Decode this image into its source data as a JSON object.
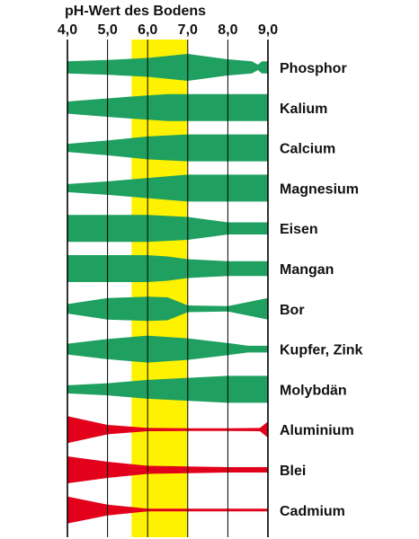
{
  "title": "pH-Wert des Bodens",
  "axis": {
    "ticks": [
      4.0,
      5.0,
      6.0,
      7.0,
      8.0,
      9.0
    ],
    "tick_labels": [
      "4,0",
      "5,0",
      "6,0",
      "7,0",
      "8,0",
      "9,0"
    ],
    "range": [
      4.0,
      9.0
    ]
  },
  "highlight": {
    "from": 5.6,
    "to": 7.0,
    "color": "#FFF200"
  },
  "colors": {
    "nutrient": "#1FA060",
    "toxic": "#E3001B",
    "grid": "#000000"
  },
  "chart_data": {
    "type": "availability-band",
    "x_unit": "pH",
    "rows": [
      {
        "label": "Phosphor",
        "kind": "nutrient",
        "profile": [
          [
            4.0,
            0.45
          ],
          [
            5.0,
            0.55
          ],
          [
            6.0,
            0.7
          ],
          [
            7.0,
            1.0
          ],
          [
            8.0,
            0.6
          ],
          [
            8.6,
            0.45
          ],
          [
            8.75,
            0.2
          ],
          [
            8.85,
            0.45
          ],
          [
            9.0,
            0.45
          ]
        ]
      },
      {
        "label": "Kalium",
        "kind": "nutrient",
        "profile": [
          [
            4.0,
            0.45
          ],
          [
            5.5,
            0.8
          ],
          [
            6.0,
            0.9
          ],
          [
            6.5,
            1.0
          ],
          [
            7.0,
            1.0
          ],
          [
            8.0,
            1.0
          ],
          [
            9.0,
            1.0
          ]
        ]
      },
      {
        "label": "Calcium",
        "kind": "nutrient",
        "profile": [
          [
            4.0,
            0.3
          ],
          [
            5.0,
            0.55
          ],
          [
            6.0,
            0.85
          ],
          [
            7.0,
            1.0
          ],
          [
            8.0,
            1.0
          ],
          [
            9.0,
            1.0
          ]
        ]
      },
      {
        "label": "Magnesium",
        "kind": "nutrient",
        "profile": [
          [
            4.0,
            0.3
          ],
          [
            5.0,
            0.5
          ],
          [
            6.0,
            0.75
          ],
          [
            7.0,
            1.0
          ],
          [
            8.0,
            1.0
          ],
          [
            9.0,
            1.0
          ]
        ]
      },
      {
        "label": "Eisen",
        "kind": "nutrient",
        "profile": [
          [
            4.0,
            1.0
          ],
          [
            6.0,
            1.0
          ],
          [
            7.0,
            0.85
          ],
          [
            8.0,
            0.45
          ],
          [
            9.0,
            0.45
          ]
        ]
      },
      {
        "label": "Mangan",
        "kind": "nutrient",
        "profile": [
          [
            4.0,
            1.0
          ],
          [
            6.0,
            1.0
          ],
          [
            6.5,
            0.9
          ],
          [
            7.0,
            0.7
          ],
          [
            8.0,
            0.55
          ],
          [
            9.0,
            0.55
          ]
        ]
      },
      {
        "label": "Bor",
        "kind": "nutrient",
        "profile": [
          [
            4.0,
            0.35
          ],
          [
            5.0,
            0.8
          ],
          [
            6.0,
            0.9
          ],
          [
            6.5,
            0.85
          ],
          [
            7.0,
            0.25
          ],
          [
            8.0,
            0.2
          ],
          [
            9.0,
            0.8
          ]
        ]
      },
      {
        "label": "Kupfer, Zink",
        "kind": "nutrient",
        "profile": [
          [
            4.0,
            0.4
          ],
          [
            5.0,
            0.75
          ],
          [
            6.0,
            1.0
          ],
          [
            7.0,
            0.8
          ],
          [
            8.0,
            0.45
          ],
          [
            8.5,
            0.25
          ],
          [
            9.0,
            0.25
          ]
        ]
      },
      {
        "label": "Molybdän",
        "kind": "nutrient",
        "profile": [
          [
            4.0,
            0.3
          ],
          [
            5.0,
            0.45
          ],
          [
            6.0,
            0.7
          ],
          [
            7.0,
            0.85
          ],
          [
            8.0,
            1.0
          ],
          [
            9.0,
            1.0
          ]
        ]
      },
      {
        "label": "Aluminium",
        "kind": "toxic",
        "profile": [
          [
            4.0,
            1.0
          ],
          [
            5.0,
            0.35
          ],
          [
            6.0,
            0.12
          ],
          [
            7.0,
            0.1
          ],
          [
            8.0,
            0.1
          ],
          [
            8.8,
            0.12
          ],
          [
            9.0,
            0.6
          ]
        ]
      },
      {
        "label": "Blei",
        "kind": "toxic",
        "profile": [
          [
            4.0,
            1.0
          ],
          [
            5.0,
            0.6
          ],
          [
            6.0,
            0.3
          ],
          [
            7.0,
            0.25
          ],
          [
            8.0,
            0.2
          ],
          [
            9.0,
            0.2
          ]
        ]
      },
      {
        "label": "Cadmium",
        "kind": "toxic",
        "profile": [
          [
            4.0,
            1.0
          ],
          [
            5.0,
            0.4
          ],
          [
            6.0,
            0.1
          ],
          [
            7.0,
            0.1
          ],
          [
            8.0,
            0.1
          ],
          [
            9.0,
            0.1
          ]
        ]
      }
    ]
  }
}
